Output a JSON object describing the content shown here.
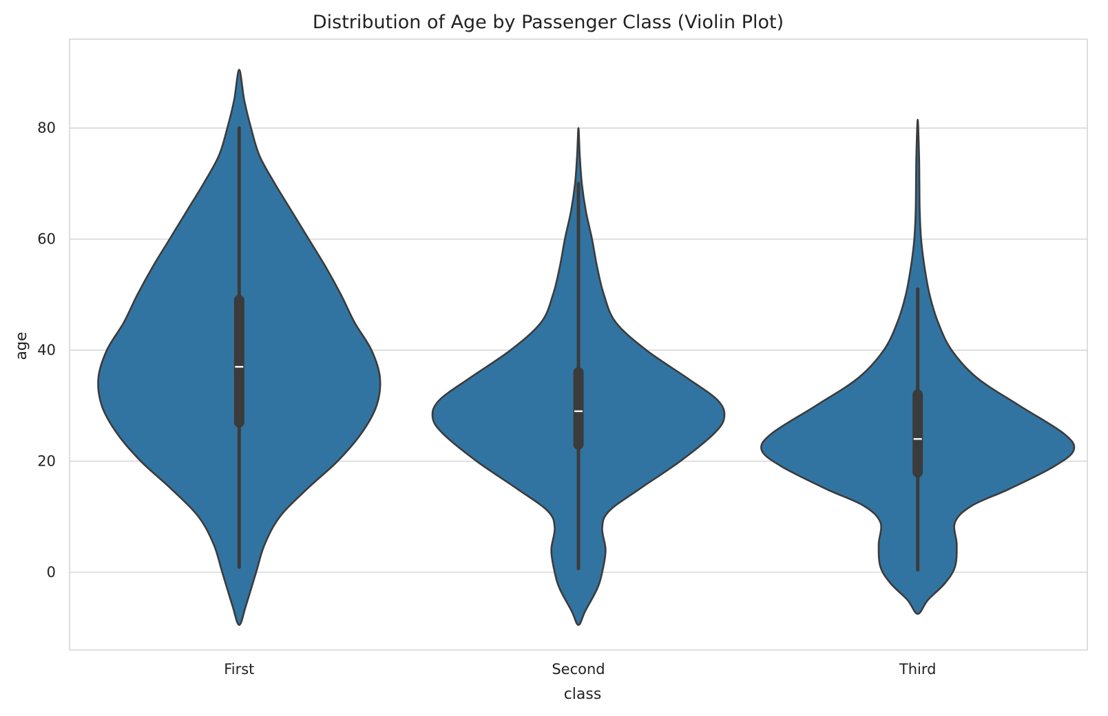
{
  "chart_data": {
    "type": "violin",
    "title": "Distribution of Age by Passenger Class (Violin Plot)",
    "xlabel": "class",
    "ylabel": "age",
    "categories": [
      "First",
      "Second",
      "Third"
    ],
    "ylim": [
      -14,
      96
    ],
    "yticks": [
      0,
      20,
      40,
      60,
      80
    ],
    "grid": "horizontal",
    "colors": {
      "fill": "#3274a1",
      "edge": "#3b3b3b",
      "box": "#3b3b3b",
      "median": "#ffffff",
      "grid": "#cfcfcf",
      "frame": "#cccccc"
    },
    "violins": [
      {
        "category": "First",
        "stats": {
          "min": 0.92,
          "q1": 27,
          "median": 37,
          "q3": 49,
          "max": 80
        },
        "density_profile": [
          {
            "age": -9.5,
            "half_width": 0.0
          },
          {
            "age": -6,
            "half_width": 0.02
          },
          {
            "age": 0,
            "half_width": 0.05
          },
          {
            "age": 5,
            "half_width": 0.075
          },
          {
            "age": 10,
            "half_width": 0.12
          },
          {
            "age": 15,
            "half_width": 0.2
          },
          {
            "age": 20,
            "half_width": 0.29
          },
          {
            "age": 25,
            "half_width": 0.36
          },
          {
            "age": 30,
            "half_width": 0.405
          },
          {
            "age": 35,
            "half_width": 0.415
          },
          {
            "age": 40,
            "half_width": 0.39
          },
          {
            "age": 45,
            "half_width": 0.34
          },
          {
            "age": 50,
            "half_width": 0.3
          },
          {
            "age": 55,
            "half_width": 0.255
          },
          {
            "age": 60,
            "half_width": 0.205
          },
          {
            "age": 65,
            "half_width": 0.155
          },
          {
            "age": 70,
            "half_width": 0.105
          },
          {
            "age": 75,
            "half_width": 0.06
          },
          {
            "age": 80,
            "half_width": 0.035
          },
          {
            "age": 85,
            "half_width": 0.015
          },
          {
            "age": 90.5,
            "half_width": 0.0
          }
        ]
      },
      {
        "category": "Second",
        "stats": {
          "min": 0.67,
          "q1": 23,
          "median": 29,
          "q3": 36,
          "max": 70
        },
        "density_profile": [
          {
            "age": -9.5,
            "half_width": 0.0
          },
          {
            "age": -7,
            "half_width": 0.02
          },
          {
            "age": -3,
            "half_width": 0.055
          },
          {
            "age": 0,
            "half_width": 0.07
          },
          {
            "age": 4,
            "half_width": 0.08
          },
          {
            "age": 8,
            "half_width": 0.07
          },
          {
            "age": 11,
            "half_width": 0.09
          },
          {
            "age": 15,
            "half_width": 0.18
          },
          {
            "age": 20,
            "half_width": 0.3
          },
          {
            "age": 25,
            "half_width": 0.4
          },
          {
            "age": 28,
            "half_width": 0.43
          },
          {
            "age": 31,
            "half_width": 0.41
          },
          {
            "age": 35,
            "half_width": 0.32
          },
          {
            "age": 40,
            "half_width": 0.2
          },
          {
            "age": 45,
            "half_width": 0.11
          },
          {
            "age": 50,
            "half_width": 0.075
          },
          {
            "age": 55,
            "half_width": 0.055
          },
          {
            "age": 60,
            "half_width": 0.04
          },
          {
            "age": 65,
            "half_width": 0.022
          },
          {
            "age": 70,
            "half_width": 0.01
          },
          {
            "age": 75,
            "half_width": 0.004
          },
          {
            "age": 80,
            "half_width": 0.0
          }
        ]
      },
      {
        "category": "Third",
        "stats": {
          "min": 0.42,
          "q1": 18,
          "median": 24,
          "q3": 32,
          "max": 51
        },
        "density_profile": [
          {
            "age": -7.5,
            "half_width": 0.0
          },
          {
            "age": -5,
            "half_width": 0.03
          },
          {
            "age": -2,
            "half_width": 0.08
          },
          {
            "age": 1,
            "half_width": 0.11
          },
          {
            "age": 5,
            "half_width": 0.115
          },
          {
            "age": 9,
            "half_width": 0.11
          },
          {
            "age": 12,
            "half_width": 0.16
          },
          {
            "age": 15,
            "half_width": 0.27
          },
          {
            "age": 19,
            "half_width": 0.4
          },
          {
            "age": 22,
            "half_width": 0.46
          },
          {
            "age": 25,
            "half_width": 0.43
          },
          {
            "age": 30,
            "half_width": 0.3
          },
          {
            "age": 35,
            "half_width": 0.175
          },
          {
            "age": 40,
            "half_width": 0.1
          },
          {
            "age": 45,
            "half_width": 0.06
          },
          {
            "age": 50,
            "half_width": 0.035
          },
          {
            "age": 55,
            "half_width": 0.02
          },
          {
            "age": 60,
            "half_width": 0.01
          },
          {
            "age": 65,
            "half_width": 0.006
          },
          {
            "age": 70,
            "half_width": 0.005
          },
          {
            "age": 75,
            "half_width": 0.004
          },
          {
            "age": 81.5,
            "half_width": 0.0
          }
        ]
      }
    ]
  }
}
